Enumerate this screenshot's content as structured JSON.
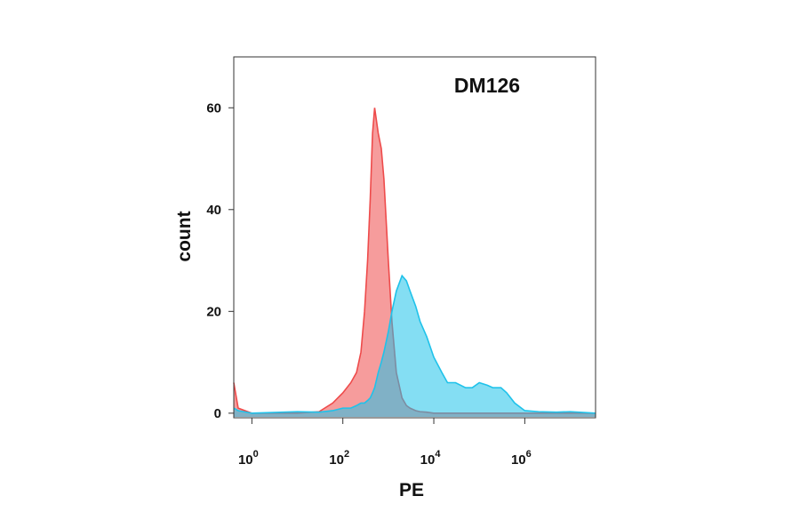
{
  "chart_data": {
    "type": "area",
    "title": "DM126",
    "x_label": "PE",
    "y_label": "count",
    "x_scale": "log",
    "x": [
      0.4,
      0.5,
      1,
      10,
      30,
      60,
      100,
      150,
      200,
      250,
      300,
      350,
      400,
      450,
      500,
      600,
      700,
      800,
      1000,
      1200,
      1500,
      2000,
      2500,
      3000,
      4000,
      5000,
      7000,
      10000,
      15000,
      20000,
      30000,
      50000,
      70000,
      100000,
      150000,
      200000,
      300000,
      400000,
      600000,
      1000000,
      2000000,
      5000000,
      10000000,
      36000000
    ],
    "series": [
      {
        "color": "#ee4b4b",
        "values": [
          6,
          1,
          0,
          0,
          0.3,
          2,
          4,
          6,
          8,
          12,
          20,
          30,
          42,
          55,
          60,
          55,
          52,
          46,
          30,
          18,
          8,
          3,
          1.5,
          1,
          0.5,
          0.3,
          0.2,
          0,
          0,
          0,
          0,
          0,
          0,
          0,
          0,
          0,
          0,
          0,
          0,
          0,
          0,
          0,
          0,
          0
        ]
      },
      {
        "color": "#1fc2ea",
        "values": [
          1,
          0.5,
          0,
          0.3,
          0.2,
          0.5,
          1,
          1,
          1.5,
          2,
          2,
          2.5,
          3,
          4,
          5,
          8,
          10,
          12,
          16,
          20,
          24,
          27,
          26,
          24,
          21,
          18,
          15,
          11,
          8,
          6,
          6,
          5,
          5,
          6,
          5.5,
          5,
          5,
          4,
          2,
          0.5,
          0.3,
          0.2,
          0.3,
          0
        ]
      }
    ],
    "xlim": [
      0.4,
      36000000
    ],
    "xticks": [
      {
        "value": 1,
        "label": "10",
        "exponent": "0"
      },
      {
        "value": 100,
        "label": "10",
        "exponent": "2"
      },
      {
        "value": 10000,
        "label": "10",
        "exponent": "4"
      },
      {
        "value": 1000000,
        "label": "10",
        "exponent": "6"
      }
    ],
    "ylim": [
      -0.9,
      70
    ],
    "yticks": [
      0,
      20,
      40,
      60
    ]
  }
}
